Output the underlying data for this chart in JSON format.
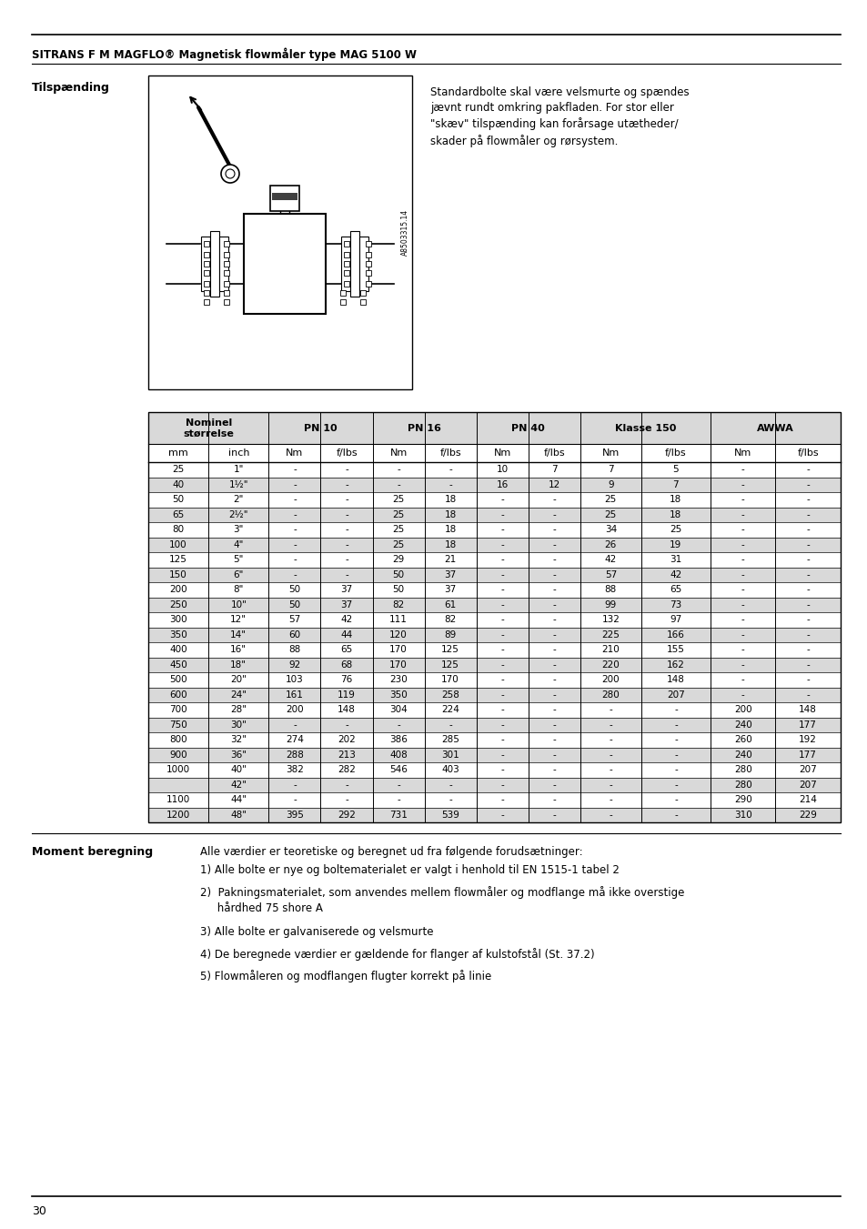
{
  "header_title": "SITRANS F M MAGFLO® Magnetisk flowmåler type MAG 5100 W",
  "section1_label": "Tilspænding",
  "section2_label": "Moment beregning",
  "tilspaending_text": "Standardbolte skal være velsmurte og spændes\njævnt rundt omkring pakfladen. For stor eller\n\"skæv\" tilspænding kan forårsage utætheder/\nskader på flowmåler og rørsystem.",
  "moment_intro": "Alle værdier er teoretiske og beregnet ud fra følgende forudsætninger:",
  "moment_points": [
    "1) Alle bolte er nye og boltematerialet er valgt i henhold til EN 1515-1 tabel 2",
    "2)  Pakningsmaterialet, som anvendes mellem flowmåler og modflange må ikke overstige\n     hårdhed 75 shore A",
    "3) Alle bolte er galvaniserede og velsmurte",
    "4) De beregnede værdier er gældende for flanger af kulstofstål (St. 37.2)",
    "5) Flowmåleren og modflangen flugter korrekt på linie"
  ],
  "page_number": "30",
  "table_data": [
    [
      "25",
      "1\"",
      "-",
      "-",
      "-",
      "-",
      "10",
      "7",
      "7",
      "5",
      "-",
      "-"
    ],
    [
      "40",
      "1½\"",
      "-",
      "-",
      "-",
      "-",
      "16",
      "12",
      "9",
      "7",
      "-",
      "-"
    ],
    [
      "50",
      "2\"",
      "-",
      "-",
      "25",
      "18",
      "-",
      "-",
      "25",
      "18",
      "-",
      "-"
    ],
    [
      "65",
      "2½\"",
      "-",
      "-",
      "25",
      "18",
      "-",
      "-",
      "25",
      "18",
      "-",
      "-"
    ],
    [
      "80",
      "3\"",
      "-",
      "-",
      "25",
      "18",
      "-",
      "-",
      "34",
      "25",
      "-",
      "-"
    ],
    [
      "100",
      "4\"",
      "-",
      "-",
      "25",
      "18",
      "-",
      "-",
      "26",
      "19",
      "-",
      "-"
    ],
    [
      "125",
      "5\"",
      "-",
      "-",
      "29",
      "21",
      "-",
      "-",
      "42",
      "31",
      "-",
      "-"
    ],
    [
      "150",
      "6\"",
      "-",
      "-",
      "50",
      "37",
      "-",
      "-",
      "57",
      "42",
      "-",
      "-"
    ],
    [
      "200",
      "8\"",
      "50",
      "37",
      "50",
      "37",
      "-",
      "-",
      "88",
      "65",
      "-",
      "-"
    ],
    [
      "250",
      "10\"",
      "50",
      "37",
      "82",
      "61",
      "-",
      "-",
      "99",
      "73",
      "-",
      "-"
    ],
    [
      "300",
      "12\"",
      "57",
      "42",
      "111",
      "82",
      "-",
      "-",
      "132",
      "97",
      "-",
      "-"
    ],
    [
      "350",
      "14\"",
      "60",
      "44",
      "120",
      "89",
      "-",
      "-",
      "225",
      "166",
      "-",
      "-"
    ],
    [
      "400",
      "16\"",
      "88",
      "65",
      "170",
      "125",
      "-",
      "-",
      "210",
      "155",
      "-",
      "-"
    ],
    [
      "450",
      "18\"",
      "92",
      "68",
      "170",
      "125",
      "-",
      "-",
      "220",
      "162",
      "-",
      "-"
    ],
    [
      "500",
      "20\"",
      "103",
      "76",
      "230",
      "170",
      "-",
      "-",
      "200",
      "148",
      "-",
      "-"
    ],
    [
      "600",
      "24\"",
      "161",
      "119",
      "350",
      "258",
      "-",
      "-",
      "280",
      "207",
      "-",
      "-"
    ],
    [
      "700",
      "28\"",
      "200",
      "148",
      "304",
      "224",
      "-",
      "-",
      "-",
      "-",
      "200",
      "148"
    ],
    [
      "750",
      "30\"",
      "-",
      "-",
      "-",
      "-",
      "-",
      "-",
      "-",
      "-",
      "240",
      "177"
    ],
    [
      "800",
      "32\"",
      "274",
      "202",
      "386",
      "285",
      "-",
      "-",
      "-",
      "-",
      "260",
      "192"
    ],
    [
      "900",
      "36\"",
      "288",
      "213",
      "408",
      "301",
      "-",
      "-",
      "-",
      "-",
      "240",
      "177"
    ],
    [
      "1000",
      "40\"",
      "382",
      "282",
      "546",
      "403",
      "-",
      "-",
      "-",
      "-",
      "280",
      "207"
    ],
    [
      "",
      "42\"",
      "-",
      "-",
      "-",
      "-",
      "-",
      "-",
      "-",
      "-",
      "280",
      "207"
    ],
    [
      "1100",
      "44\"",
      "-",
      "-",
      "-",
      "-",
      "-",
      "-",
      "-",
      "-",
      "290",
      "214"
    ],
    [
      "1200",
      "48\"",
      "395",
      "292",
      "731",
      "539",
      "-",
      "-",
      "-",
      "-",
      "310",
      "229"
    ]
  ],
  "bg_color_light": "#d9d9d9",
  "bg_color_white": "#ffffff"
}
